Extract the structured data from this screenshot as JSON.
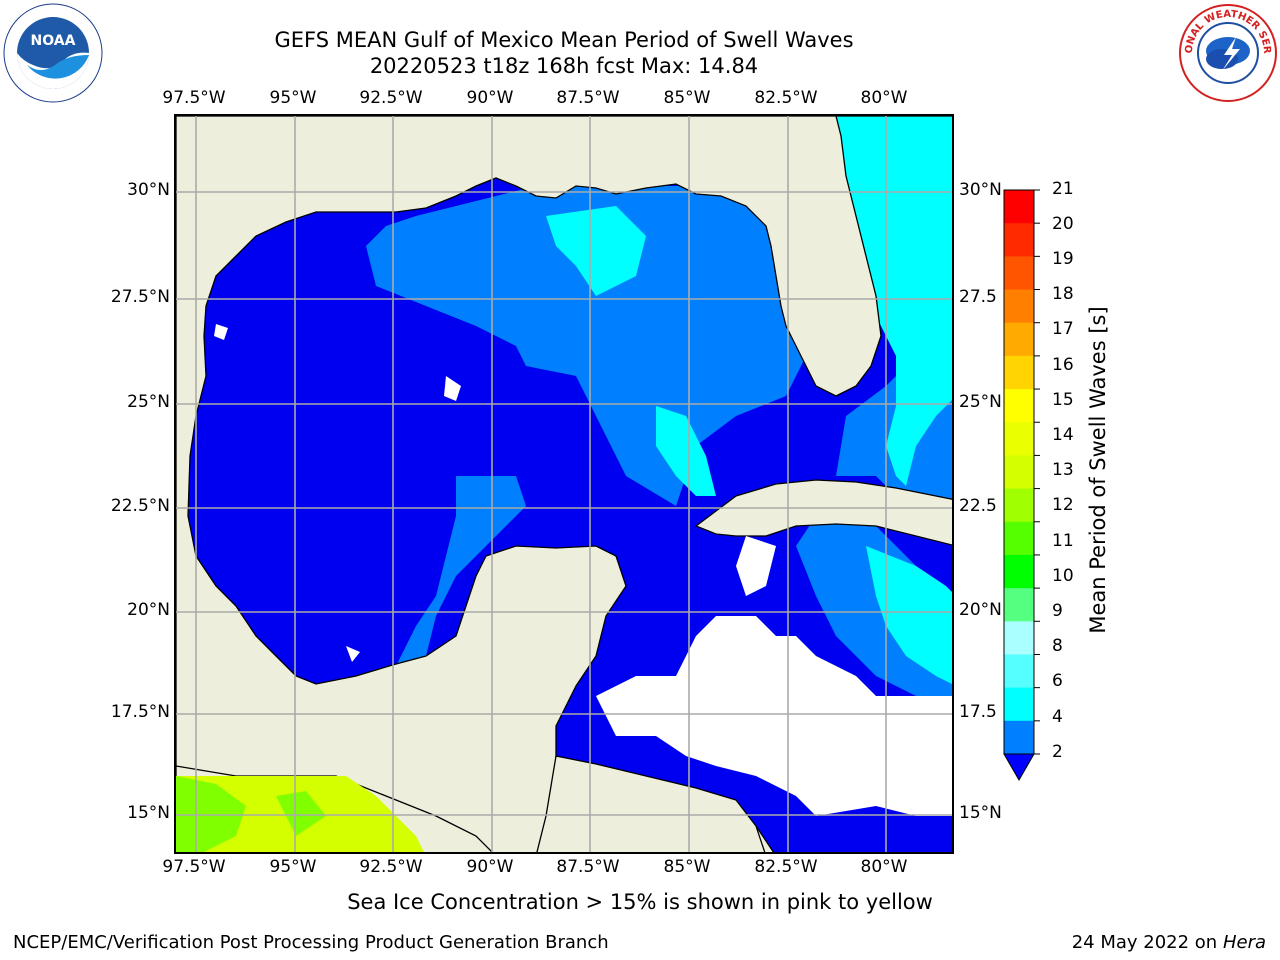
{
  "title": {
    "line1": "GEFS MEAN Gulf of Mexico Mean Period of Swell Waves",
    "line2": "20220523 t18z 168h fcst   Max: 14.84"
  },
  "axes": {
    "longitude_labels": [
      "97.5°W",
      "95°W",
      "92.5°W",
      "90°W",
      "87.5°W",
      "85°W",
      "82.5°W",
      "80°W"
    ],
    "latitude_labels": [
      "30°N",
      "27.5°N",
      "25°N",
      "22.5°N",
      "20°N",
      "17.5°N",
      "15°N"
    ],
    "latitude_labels_right": [
      "30°N",
      "27.5",
      "25°N",
      "22.5",
      "20°N",
      "17.5",
      "15°N"
    ]
  },
  "colorbar": {
    "title": "Mean Period of Swell Waves [s]",
    "tick_labels": [
      "21",
      "20",
      "19",
      "18",
      "17",
      "16",
      "15",
      "14",
      "13",
      "12",
      "11",
      "10",
      "9",
      "8",
      "6",
      "4",
      "2"
    ],
    "colors": [
      "#ff0000",
      "#ff2a00",
      "#ff5500",
      "#ff8000",
      "#ffaa00",
      "#ffd400",
      "#ffff00",
      "#eaff00",
      "#d4ff00",
      "#a0ff00",
      "#55ff00",
      "#00ff00",
      "#55ff80",
      "#aaffff",
      "#55ffff",
      "#00ffff",
      "#0080ff",
      "#0000ff"
    ]
  },
  "map": {
    "land_color": "#eeeedc",
    "colors": {
      "level_2_4": "#0000f0",
      "level_4_6": "#0080ff",
      "level_6_8": "#00ffff",
      "level_8_9": "#55ffff",
      "level_12_13": "#d4ff00",
      "level_11_12": "#80ff00",
      "no_data": "#ffffff"
    }
  },
  "footnote": "Sea Ice Concentration > 15% is shown in pink to yellow",
  "credit": "NCEP/EMC/Verification Post Processing Product Generation Branch",
  "date_text": "24 May 2022 on",
  "host": "Hera",
  "logos": {
    "left": "NOAA",
    "right": "NATIONAL WEATHER SERVICE"
  }
}
